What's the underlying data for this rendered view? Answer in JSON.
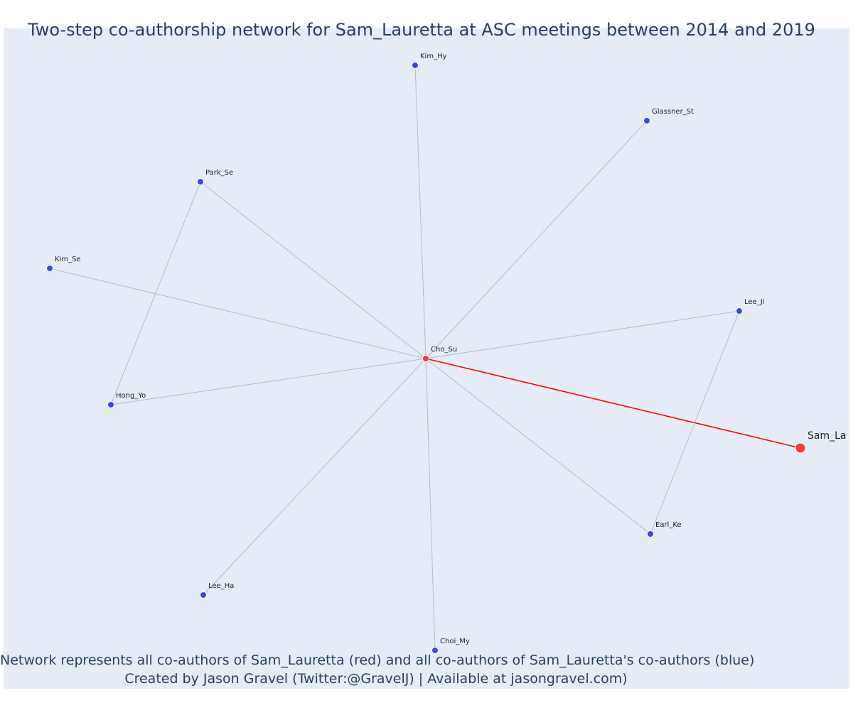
{
  "title": "Two-step co-authorship network for Sam_Lauretta at ASC meetings between 2014 and 2019",
  "footer": {
    "line1": "Network represents all co-authors of Sam_Lauretta (red) and all co-authors of Sam_Lauretta's co-authors (blue)",
    "line2": "Created by Jason Gravel (Twitter:@GravelJ) | Available at jasongravel.com)"
  },
  "colors": {
    "focal": "#ef3b3b",
    "coauthor": "#ef3b3b",
    "second_step": "#3b48e8",
    "focal_edge": "#ff0000",
    "edge": "#b8b8cc",
    "background": "#e5ecf6",
    "text": "#2a3f5f"
  },
  "nodes": [
    {
      "id": "Sam_La",
      "role": "focal"
    },
    {
      "id": "Cho_Su",
      "role": "coauthor"
    },
    {
      "id": "Kim_Hy",
      "role": "second_step"
    },
    {
      "id": "Glassner_St",
      "role": "second_step"
    },
    {
      "id": "Park_Se",
      "role": "second_step"
    },
    {
      "id": "Kim_Se",
      "role": "second_step"
    },
    {
      "id": "Lee_Ji",
      "role": "second_step"
    },
    {
      "id": "Hong_Yo",
      "role": "second_step"
    },
    {
      "id": "Earl_Ke",
      "role": "second_step"
    },
    {
      "id": "Lee_Ha",
      "role": "second_step"
    },
    {
      "id": "Choi_My",
      "role": "second_step"
    }
  ],
  "edges": [
    {
      "source": "Cho_Su",
      "target": "Sam_La",
      "focal": true
    },
    {
      "source": "Cho_Su",
      "target": "Kim_Hy"
    },
    {
      "source": "Cho_Su",
      "target": "Glassner_St"
    },
    {
      "source": "Cho_Su",
      "target": "Park_Se"
    },
    {
      "source": "Cho_Su",
      "target": "Kim_Se"
    },
    {
      "source": "Cho_Su",
      "target": "Lee_Ji"
    },
    {
      "source": "Cho_Su",
      "target": "Hong_Yo"
    },
    {
      "source": "Cho_Su",
      "target": "Earl_Ke"
    },
    {
      "source": "Cho_Su",
      "target": "Lee_Ha"
    },
    {
      "source": "Cho_Su",
      "target": "Choi_My"
    },
    {
      "source": "Park_Se",
      "target": "Hong_Yo"
    },
    {
      "source": "Lee_Ji",
      "target": "Earl_Ke"
    }
  ]
}
